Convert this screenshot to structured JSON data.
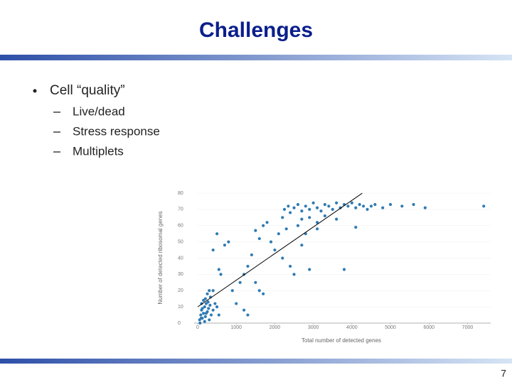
{
  "slide": {
    "title": "Challenges",
    "bullets": [
      {
        "text": "Cell “quality”",
        "items": [
          "Live/dead",
          "Stress response",
          "Multiplets"
        ]
      }
    ],
    "page_number": "7"
  },
  "chart_data": {
    "type": "scatter",
    "xlabel": "Total number of detected genes",
    "ylabel": "Number of detected ribosomal genes",
    "color": "#2f7bb3",
    "x": [
      50,
      80,
      100,
      120,
      150,
      180,
      200,
      220,
      250,
      280,
      300,
      100,
      60,
      150,
      200,
      320,
      350,
      400,
      250,
      300,
      180,
      120,
      90,
      220,
      270,
      330,
      400,
      450,
      500,
      550,
      400,
      500,
      550,
      600,
      700,
      800,
      900,
      1000,
      1200,
      1300,
      1100,
      1200,
      1300,
      1400,
      1500,
      1600,
      1700,
      1500,
      1600,
      1700,
      1800,
      1900,
      2000,
      2100,
      2200,
      2300,
      2400,
      2500,
      2700,
      2800,
      2900,
      2200,
      2600,
      3800,
      3100,
      4100,
      2250,
      2350,
      2400,
      2500,
      2600,
      2700,
      2800,
      2900,
      3000,
      3100,
      3200,
      3300,
      3400,
      3500,
      3600,
      3700,
      3800,
      3900,
      4000,
      4100,
      4200,
      4300,
      4400,
      4500,
      4600,
      4800,
      5000,
      5300,
      5600,
      5900,
      7420,
      2900,
      3300,
      3600,
      3100,
      2700
    ],
    "values": [
      2,
      5,
      8,
      3,
      6,
      10,
      4,
      12,
      7,
      9,
      2,
      12,
      0,
      14,
      15,
      11,
      5,
      8,
      18,
      20,
      1,
      9,
      3,
      6,
      13,
      16,
      20,
      12,
      10,
      5,
      45,
      55,
      33,
      30,
      48,
      50,
      20,
      12,
      8,
      5,
      25,
      30,
      35,
      42,
      57,
      52,
      60,
      25,
      20,
      18,
      62,
      50,
      45,
      55,
      40,
      58,
      35,
      30,
      48,
      55,
      33,
      65,
      60,
      33,
      58,
      59,
      70,
      72,
      68,
      71,
      73,
      69,
      72,
      70,
      74,
      71,
      69,
      73,
      72,
      70,
      74,
      71,
      73,
      72,
      74,
      71,
      73,
      72,
      70,
      72,
      73,
      71,
      73,
      72,
      73,
      71,
      72,
      65,
      66,
      64,
      62,
      64
    ],
    "fit_line": {
      "x": [
        0,
        4270
      ],
      "y": [
        10,
        80
      ],
      "color": "#000000"
    },
    "xlim": [
      0,
      7600
    ],
    "ylim": [
      0,
      80
    ],
    "xticks": [
      0,
      1000,
      2000,
      3000,
      4000,
      5000,
      6000,
      7000
    ],
    "yticks": [
      0,
      10,
      20,
      30,
      40,
      50,
      60,
      70,
      80
    ]
  }
}
